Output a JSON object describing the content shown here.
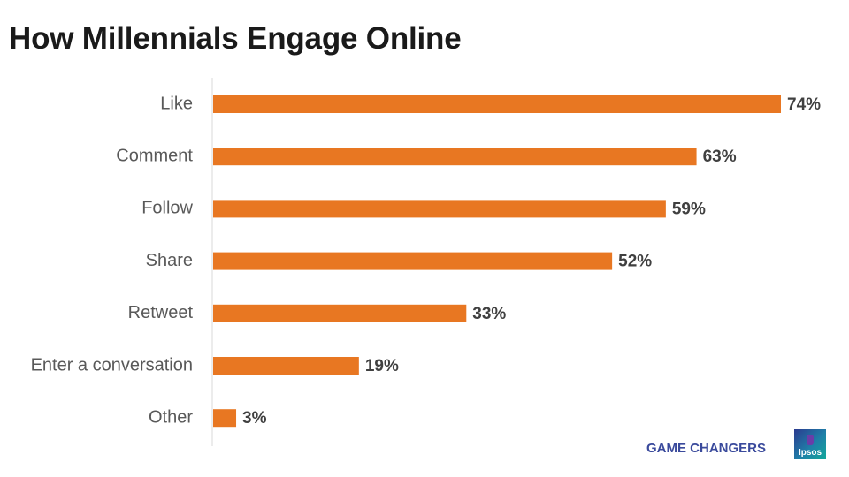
{
  "title": "How Millennials Engage Online",
  "footer": {
    "brand": "GAME CHANGERS",
    "logo_text": "Ipsos"
  },
  "colors": {
    "bar": "#E87722",
    "axis": "#D9D9D9"
  },
  "chart_data": {
    "type": "bar",
    "orientation": "horizontal",
    "title": "How Millennials Engage Online",
    "categories": [
      "Like",
      "Comment",
      "Follow",
      "Share",
      "Retweet",
      "Enter a conversation",
      "Other"
    ],
    "values": [
      74,
      63,
      59,
      52,
      33,
      19,
      3
    ],
    "value_labels": [
      "74%",
      "63%",
      "59%",
      "52%",
      "33%",
      "19%",
      "3%"
    ],
    "xlim": [
      0,
      80
    ],
    "grid": false,
    "legend": "none"
  }
}
